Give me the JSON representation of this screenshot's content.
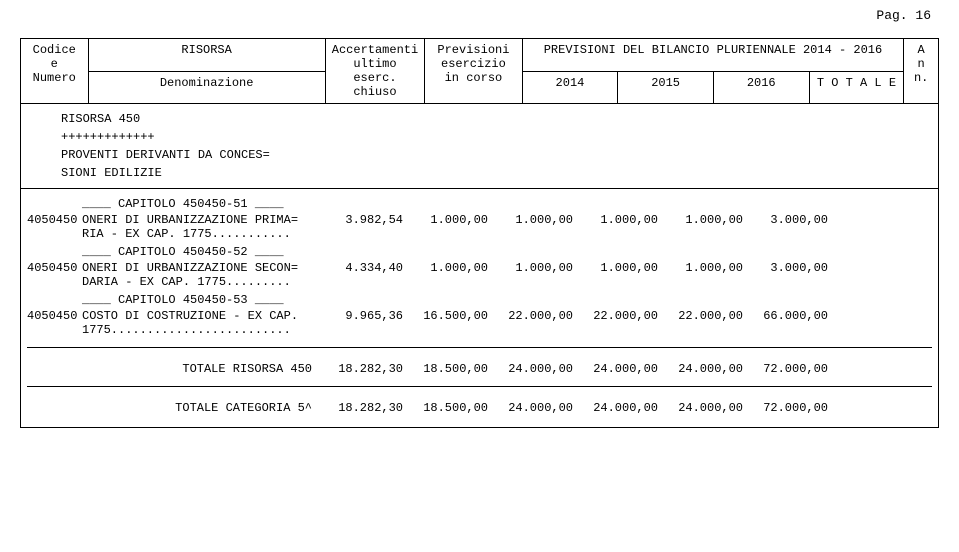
{
  "page_label": "Pag.  16",
  "header": {
    "codice_line1": "Codice",
    "codice_line2": "e",
    "codice_line3": "Numero",
    "risorsa": "RISORSA",
    "denominazione": "Denominazione",
    "accert_line1": "Accertamenti",
    "accert_line2": "ultimo eserc.",
    "accert_line3": "chiuso",
    "prev_line1": "Previsioni",
    "prev_line2": "esercizio",
    "prev_line3": "in corso",
    "plur_title": "PREVISIONI DEL BILANCIO PLURIENNALE 2014 - 2016",
    "y2014": "2014",
    "y2015": "2015",
    "y2016": "2016",
    "totale": "T O T A L E",
    "ann_a": "A",
    "ann_n": "n",
    "ann_end": "n."
  },
  "risorsa_block": {
    "l1": "RISORSA   450",
    "l2": "+++++++++++++",
    "l3": "PROVENTI  DERIVANTI DA CONCES=",
    "l4": "SIONI EDILIZIE"
  },
  "cap1_pre": "____ CAPITOLO 450450-51 ____",
  "cap2_pre": "____ CAPITOLO 450450-52 ____",
  "cap3_pre": "____ CAPITOLO 450450-53 ____",
  "rows": [
    {
      "code": "4050450",
      "desc1": "ONERI DI URBANIZZAZIONE PRIMA=",
      "desc2": "RIA - EX CAP. 1775...........",
      "accert": "3.982,54",
      "prev": "1.000,00",
      "y2014": "1.000,00",
      "y2015": "1.000,00",
      "y2016": "1.000,00",
      "tot": "3.000,00"
    },
    {
      "code": "4050450",
      "desc1": "ONERI DI URBANIZZAZIONE SECON=",
      "desc2": "DARIA - EX CAP. 1775.........",
      "accert": "4.334,40",
      "prev": "1.000,00",
      "y2014": "1.000,00",
      "y2015": "1.000,00",
      "y2016": "1.000,00",
      "tot": "3.000,00"
    },
    {
      "code": "4050450",
      "desc1": "COSTO DI COSTRUZIONE - EX CAP.",
      "desc2": "1775.........................",
      "accert": "9.965,36",
      "prev": "16.500,00",
      "y2014": "22.000,00",
      "y2015": "22.000,00",
      "y2016": "22.000,00",
      "tot": "66.000,00"
    }
  ],
  "totals": [
    {
      "label": "TOTALE RISORSA  450",
      "accert": "18.282,30",
      "prev": "18.500,00",
      "y2014": "24.000,00",
      "y2015": "24.000,00",
      "y2016": "24.000,00",
      "tot": "72.000,00"
    },
    {
      "label": "TOTALE CATEGORIA 5^",
      "accert": "18.282,30",
      "prev": "18.500,00",
      "y2014": "24.000,00",
      "y2015": "24.000,00",
      "y2016": "24.000,00",
      "tot": "72.000,00"
    }
  ]
}
